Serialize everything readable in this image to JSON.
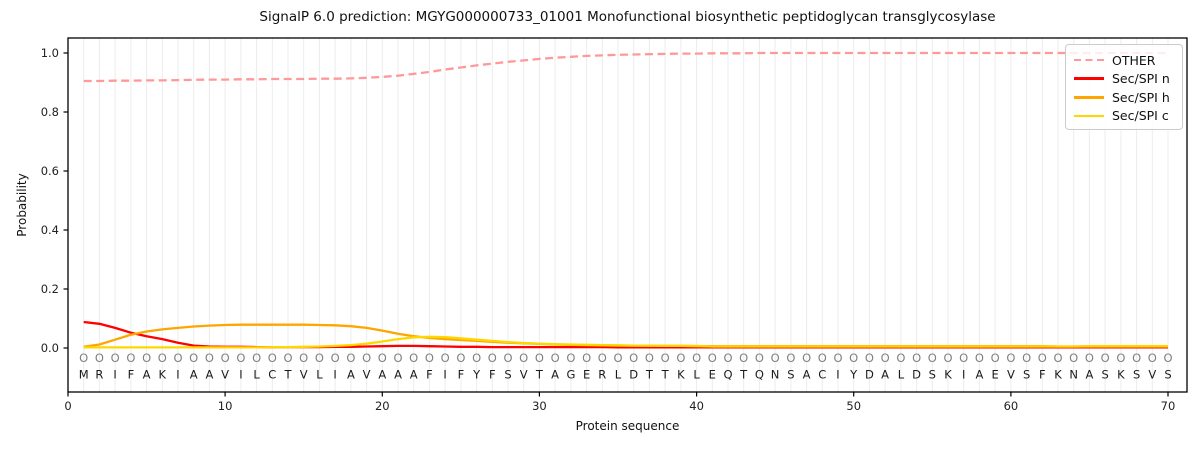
{
  "figure": {
    "title": "SignalP 6.0 prediction: MGYG000000733_01001 Monofunctional biosynthetic peptidoglycan transglycosylase"
  },
  "chart_data": {
    "type": "line",
    "title": "SignalP 6.0 prediction: MGYG000000733_01001 Monofunctional biosynthetic peptidoglycan transglycosylase",
    "xlabel": "Protein sequence",
    "ylabel": "Probability",
    "xlim": [
      0,
      71.5
    ],
    "ylim": [
      -0.15,
      1.05
    ],
    "xticks": [
      0,
      10,
      20,
      30,
      40,
      50,
      60,
      70
    ],
    "yticks": [
      "0.0",
      "0.2",
      "0.4",
      "0.6",
      "0.8",
      "1.0"
    ],
    "grid": "vertical line per residue, light gray",
    "legend_position": "upper right",
    "sequence": "MRIFAKIAAVILCTVLIAVAAAFIFYFSVTAGERLDTTKLEQTQNSACIYDALDSKIAEVSFKNASKSVS",
    "residue_marker": "O",
    "series": [
      {
        "name": "OTHER",
        "color": "#ff9999",
        "style": "dashed",
        "values": [
          0.905,
          0.905,
          0.906,
          0.906,
          0.907,
          0.907,
          0.908,
          0.909,
          0.91,
          0.91,
          0.911,
          0.911,
          0.912,
          0.912,
          0.912,
          0.913,
          0.913,
          0.914,
          0.916,
          0.919,
          0.923,
          0.929,
          0.936,
          0.944,
          0.951,
          0.958,
          0.964,
          0.97,
          0.975,
          0.98,
          0.984,
          0.987,
          0.99,
          0.992,
          0.994,
          0.995,
          0.996,
          0.997,
          0.998,
          0.998,
          0.999,
          0.999,
          0.999,
          1.0,
          1.0,
          1.0,
          1.0,
          1.0,
          1.0,
          1.0,
          1.0,
          1.0,
          1.0,
          1.0,
          1.0,
          1.0,
          1.0,
          1.0,
          1.0,
          1.0,
          1.0,
          1.0,
          1.0,
          1.0,
          1.0,
          1.0,
          1.0,
          1.0,
          1.0,
          1.0
        ]
      },
      {
        "name": "Sec/SPI n",
        "color": "#ff0000",
        "style": "solid",
        "values": [
          0.088,
          0.082,
          0.068,
          0.052,
          0.04,
          0.03,
          0.018,
          0.008,
          0.005,
          0.004,
          0.004,
          0.003,
          0.003,
          0.003,
          0.003,
          0.003,
          0.004,
          0.004,
          0.005,
          0.006,
          0.007,
          0.007,
          0.006,
          0.005,
          0.004,
          0.004,
          0.003,
          0.003,
          0.003,
          0.003,
          0.003,
          0.003,
          0.003,
          0.003,
          0.002,
          0.002,
          0.002,
          0.002,
          0.002,
          0.002,
          0.002,
          0.002,
          0.002,
          0.002,
          0.002,
          0.002,
          0.002,
          0.002,
          0.002,
          0.002,
          0.002,
          0.002,
          0.002,
          0.002,
          0.002,
          0.002,
          0.002,
          0.002,
          0.002,
          0.002,
          0.002,
          0.002,
          0.002,
          0.002,
          0.002,
          0.002,
          0.002,
          0.002,
          0.002,
          0.002
        ]
      },
      {
        "name": "Sec/SPI h",
        "color": "#ffa500",
        "style": "solid",
        "values": [
          0.004,
          0.012,
          0.028,
          0.045,
          0.056,
          0.063,
          0.068,
          0.073,
          0.076,
          0.078,
          0.079,
          0.079,
          0.079,
          0.079,
          0.079,
          0.078,
          0.077,
          0.074,
          0.068,
          0.059,
          0.048,
          0.04,
          0.034,
          0.03,
          0.027,
          0.024,
          0.021,
          0.018,
          0.016,
          0.014,
          0.012,
          0.011,
          0.01,
          0.009,
          0.008,
          0.008,
          0.007,
          0.007,
          0.007,
          0.006,
          0.006,
          0.006,
          0.006,
          0.006,
          0.006,
          0.006,
          0.006,
          0.006,
          0.006,
          0.006,
          0.006,
          0.006,
          0.006,
          0.006,
          0.006,
          0.006,
          0.006,
          0.006,
          0.006,
          0.006,
          0.006,
          0.006,
          0.005,
          0.005,
          0.005,
          0.005,
          0.005,
          0.005,
          0.005,
          0.005
        ]
      },
      {
        "name": "Sec/SPI c",
        "color": "#ffd700",
        "style": "solid",
        "values": [
          0.002,
          0.002,
          0.002,
          0.002,
          0.002,
          0.002,
          0.002,
          0.002,
          0.002,
          0.002,
          0.002,
          0.002,
          0.003,
          0.003,
          0.004,
          0.005,
          0.007,
          0.01,
          0.015,
          0.022,
          0.03,
          0.036,
          0.038,
          0.037,
          0.033,
          0.028,
          0.024,
          0.02,
          0.017,
          0.015,
          0.013,
          0.012,
          0.011,
          0.01,
          0.009,
          0.008,
          0.008,
          0.007,
          0.007,
          0.007,
          0.005,
          0.005,
          0.005,
          0.005,
          0.005,
          0.005,
          0.005,
          0.005,
          0.005,
          0.005,
          0.005,
          0.005,
          0.005,
          0.005,
          0.005,
          0.005,
          0.005,
          0.005,
          0.005,
          0.005,
          0.005,
          0.005,
          0.005,
          0.005,
          0.006,
          0.006,
          0.006,
          0.006,
          0.006,
          0.006
        ]
      }
    ]
  }
}
